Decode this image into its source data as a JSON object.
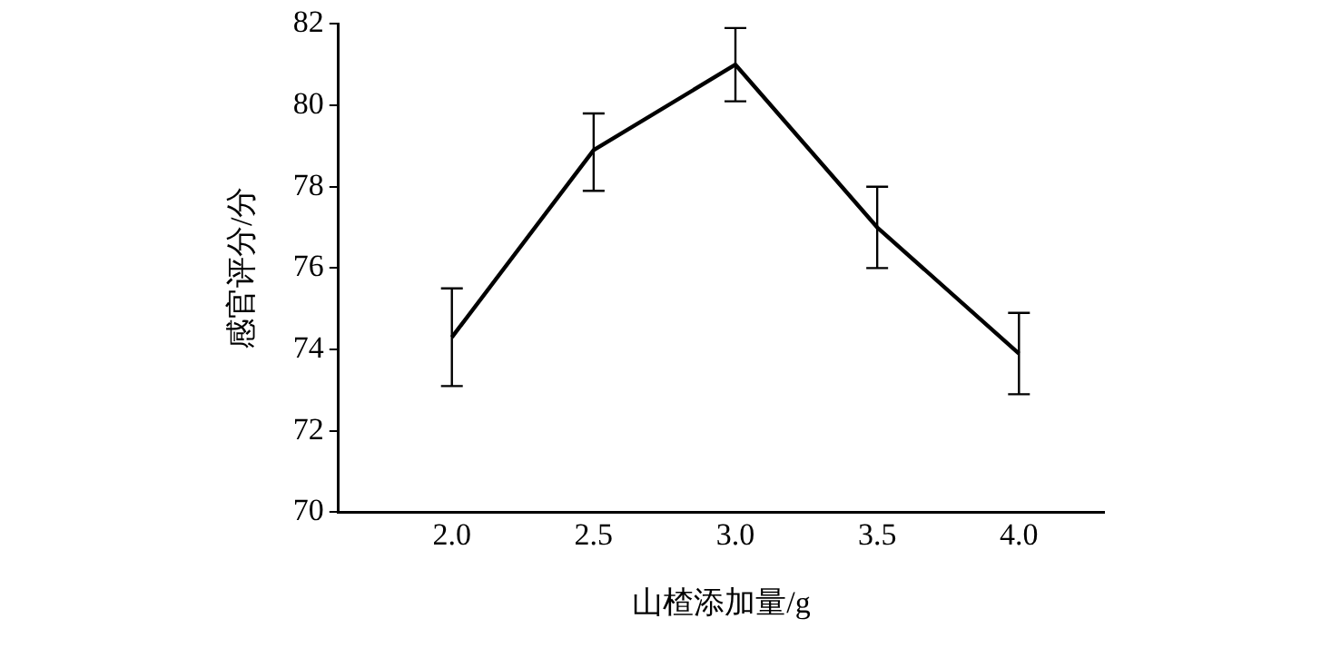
{
  "chart_data": {
    "type": "line",
    "xlabel": "山楂添加量/g",
    "ylabel": "感官评分/分",
    "x": [
      2.0,
      2.5,
      3.0,
      3.5,
      4.0
    ],
    "values": [
      74.3,
      78.9,
      81.0,
      77.0,
      73.9
    ],
    "errors": [
      [
        73.1,
        75.5
      ],
      [
        77.9,
        79.8
      ],
      [
        80.1,
        81.9
      ],
      [
        76.0,
        78.0
      ],
      [
        72.9,
        74.9
      ]
    ],
    "color": "#000000",
    "xlim": [
      1.6,
      4.3
    ],
    "xticks": [
      {
        "value": 2,
        "label": "2.0"
      },
      {
        "value": 2.5,
        "label": "2.5"
      },
      {
        "value": 3,
        "label": "3.0"
      },
      {
        "value": 3.5,
        "label": "3.5"
      },
      {
        "value": 4,
        "label": "4.0"
      }
    ],
    "ylim": [
      70,
      82
    ],
    "yticks": [
      70,
      72,
      74,
      76,
      78,
      80,
      82
    ],
    "grid": false
  }
}
